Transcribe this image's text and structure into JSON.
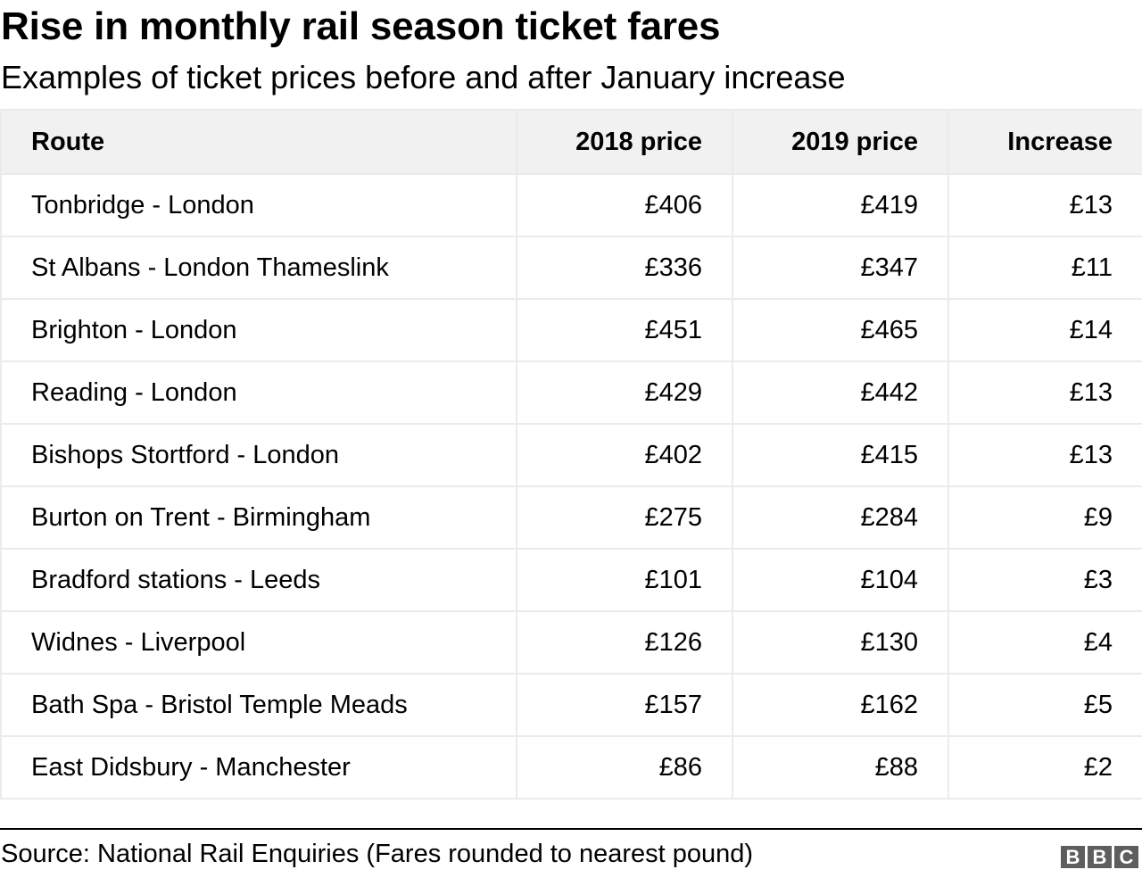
{
  "header": {
    "title": "Rise in monthly rail season ticket fares",
    "subtitle": "Examples of ticket prices before and after January increase"
  },
  "table": {
    "columns": [
      "Route",
      "2018 price",
      "2019 price",
      "Increase"
    ],
    "rows": [
      [
        "Tonbridge - London",
        "£406",
        "£419",
        "£13"
      ],
      [
        "St Albans - London Thameslink",
        "£336",
        "£347",
        "£11"
      ],
      [
        "Brighton - London",
        "£451",
        "£465",
        "£14"
      ],
      [
        "Reading - London",
        "£429",
        "£442",
        "£13"
      ],
      [
        "Bishops Stortford - London",
        "£402",
        "£415",
        "£13"
      ],
      [
        "Burton on Trent - Birmingham",
        "£275",
        "£284",
        "£9"
      ],
      [
        "Bradford stations - Leeds",
        "£101",
        "£104",
        "£3"
      ],
      [
        "Widnes - Liverpool",
        "£126",
        "£130",
        "£4"
      ],
      [
        "Bath Spa - Bristol Temple Meads",
        "£157",
        "£162",
        "£5"
      ],
      [
        "East Didsbury - Manchester",
        "£86",
        "£88",
        "£2"
      ]
    ]
  },
  "footer": {
    "source": "Source: National Rail Enquiries (Fares rounded to nearest pound)",
    "logo": [
      "B",
      "B",
      "C"
    ]
  },
  "colors": {
    "header_bg": "#f1f1f1",
    "border": "#ebebeb",
    "logo_bg": "#5e5e5e"
  },
  "chart_data": {
    "type": "table",
    "title": "Rise in monthly rail season ticket fares",
    "subtitle": "Examples of ticket prices before and after January increase",
    "columns": [
      "Route",
      "2018 price",
      "2019 price",
      "Increase"
    ],
    "categories": [
      "Tonbridge - London",
      "St Albans - London Thameslink",
      "Brighton - London",
      "Reading - London",
      "Bishops Stortford - London",
      "Burton on Trent - Birmingham",
      "Bradford stations - Leeds",
      "Widnes - Liverpool",
      "Bath Spa - Bristol Temple Meads",
      "East Didsbury - Manchester"
    ],
    "series": [
      {
        "name": "2018 price",
        "unit": "£",
        "values": [
          406,
          336,
          451,
          429,
          402,
          275,
          101,
          126,
          157,
          86
        ]
      },
      {
        "name": "2019 price",
        "unit": "£",
        "values": [
          419,
          347,
          465,
          442,
          415,
          284,
          104,
          130,
          162,
          88
        ]
      },
      {
        "name": "Increase",
        "unit": "£",
        "values": [
          13,
          11,
          14,
          13,
          13,
          9,
          3,
          4,
          5,
          2
        ]
      }
    ],
    "source": "Source: National Rail Enquiries (Fares rounded to nearest pound)"
  }
}
